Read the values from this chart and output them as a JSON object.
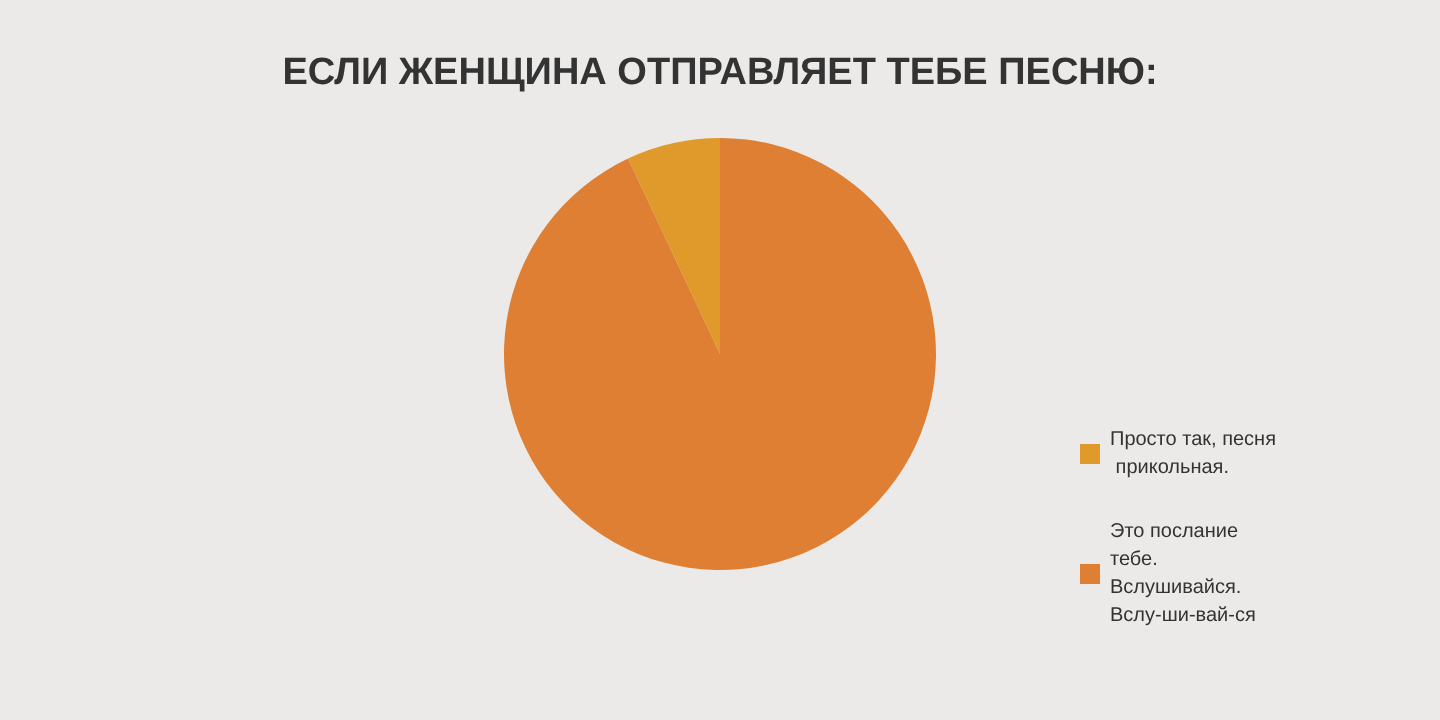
{
  "chart_data": {
    "type": "pie",
    "title": "ЕСЛИ ЖЕНЩИНА ОТПРАВЛЯЕТ ТЕБЕ ПЕСНЮ:",
    "categories": [
      "Просто так, песня прикольная.",
      "Это послание тебе. Вслушивайся. Вслу-ши-вай-ся"
    ],
    "values": [
      7,
      93
    ],
    "colors": [
      "#e09a2c",
      "#df7f33"
    ],
    "legend": "bottom right"
  }
}
